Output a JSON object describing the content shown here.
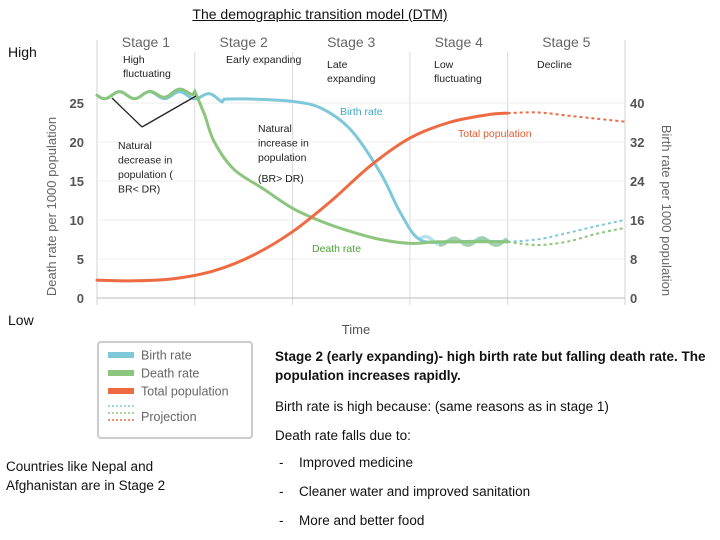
{
  "slide": {
    "title": "The demographic transition model (DTM)",
    "high_label": "High",
    "low_label": "Low"
  },
  "chart_data": {
    "type": "line",
    "title": "",
    "xlabel": "Time",
    "ylabel_left": "Death rate per 1000 population",
    "ylabel_right": "Birth rate per 1000 population",
    "ylim_left": [
      0,
      25
    ],
    "ylim_right": [
      0,
      40
    ],
    "yticks_left": [
      0,
      5,
      10,
      15,
      20,
      25
    ],
    "yticks_right": [
      0,
      8,
      16,
      24,
      32,
      40
    ],
    "xlim": [
      0,
      5.4
    ],
    "stages": [
      {
        "label": "Stage 1",
        "start": 0,
        "end": 1
      },
      {
        "label": "Stage 2",
        "start": 1,
        "end": 2
      },
      {
        "label": "Stage 3",
        "start": 2,
        "end": 3.2
      },
      {
        "label": "Stage 4",
        "start": 3.2,
        "end": 4.2
      },
      {
        "label": "Stage 5",
        "start": 4.2,
        "end": 5.4
      }
    ],
    "stage_descriptions": [
      "High fluctuating",
      "Early expanding",
      "Late expanding",
      "Low fluctuating",
      "Decline"
    ],
    "series": [
      {
        "name": "Birth rate",
        "color": "#7ec8d9",
        "x": [
          0,
          0.5,
          1,
          1.3,
          1.6,
          2.0,
          2.3,
          2.6,
          2.9,
          3.1,
          3.3,
          3.6,
          3.9,
          4.2
        ],
        "y": [
          26,
          26,
          26,
          25.5,
          25.5,
          25.2,
          24.3,
          21.5,
          16,
          11,
          7.5,
          7.2,
          7.3,
          7.2
        ]
      },
      {
        "name": "Death rate",
        "color": "#8cc57e",
        "x": [
          0,
          0.5,
          1.0,
          1.1,
          1.2,
          1.4,
          1.7,
          2.0,
          2.3,
          2.6,
          2.9,
          3.2,
          3.5,
          3.9,
          4.2
        ],
        "y": [
          26,
          26,
          26.5,
          23.5,
          20,
          16.5,
          14,
          11.5,
          9.8,
          8.5,
          7.5,
          7.0,
          7.2,
          7.2,
          7.2
        ]
      },
      {
        "name": "Total population",
        "color": "#ee6a43",
        "x": [
          0,
          0.4,
          0.8,
          1.2,
          1.6,
          2.0,
          2.4,
          2.8,
          3.2,
          3.6,
          4.0,
          4.2
        ],
        "y": [
          2.3,
          2.2,
          2.5,
          3.5,
          5.5,
          8.5,
          12.5,
          17,
          20.5,
          22.5,
          23.5,
          23.7
        ]
      }
    ],
    "projection": {
      "label": "Projection",
      "x": [
        4.2,
        4.5,
        4.8,
        5.1,
        5.4
      ],
      "birth_rate": [
        7.2,
        7.5,
        8.3,
        9.2,
        10
      ],
      "death_rate": [
        7.2,
        6.8,
        7.2,
        8.2,
        9
      ],
      "total_population": [
        23.7,
        23.8,
        23.4,
        23.0,
        22.6
      ]
    },
    "annotations": [
      {
        "text": "Birth rate",
        "x": 2.4,
        "y": 23,
        "color": "#3fa8c2"
      },
      {
        "text": "Total population",
        "x": 3.1,
        "y": 20.5,
        "color": "#e05a30"
      },
      {
        "text": "Death rate",
        "x": 2.1,
        "y": 7,
        "color": "#4aa03a"
      },
      {
        "text": "Natural increase in population",
        "x": 1.4,
        "y": 18
      },
      {
        "text": "(BR> DR)",
        "x": 1.4,
        "y": 13
      },
      {
        "text": "Natural decrease in population ( BR< DR)",
        "x": 0.15,
        "y": 17.5
      }
    ],
    "legend": [
      "Birth rate",
      "Death rate",
      "Total population",
      "Projection"
    ],
    "grid": true
  },
  "notes": {
    "heading": "Stage 2 (early expanding)- high birth rate but falling death rate. The population increases rapidly.",
    "birth_reason": "Birth rate is high because: (same reasons as in stage 1)",
    "death_intro": "Death rate falls due to:",
    "bullets": [
      "Improved medicine",
      "Cleaner water and improved sanitation",
      "More and better food"
    ],
    "bullet_marker": "-"
  },
  "countries": "Countries like Nepal and Afghanistan are in Stage 2"
}
